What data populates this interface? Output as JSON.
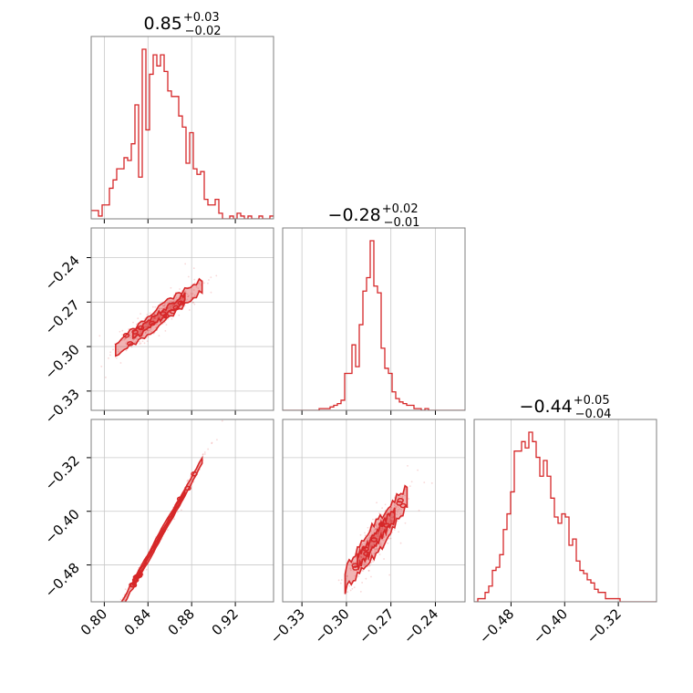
{
  "chart_data": {
    "type": "corner",
    "color": "#d62728",
    "params": [
      {
        "id": "p0",
        "median": 0.85,
        "title_main": "0.85",
        "title_sup": "+0.03",
        "title_sub": "−0.02",
        "range": [
          0.788,
          0.955
        ],
        "ticks": [
          0.8,
          0.84,
          0.88,
          0.92
        ],
        "tick_labels": [
          "0.80",
          "0.84",
          "0.88",
          "0.92"
        ]
      },
      {
        "id": "p1",
        "median": -0.28,
        "title_main": "−0.28",
        "title_sup": "+0.02",
        "title_sub": "−0.01",
        "range": [
          -0.343,
          -0.22
        ],
        "ticks": [
          -0.33,
          -0.3,
          -0.27,
          -0.24
        ],
        "tick_labels": [
          "−0.33",
          "−0.30",
          "−0.27",
          "−0.24"
        ]
      },
      {
        "id": "p2",
        "median": -0.44,
        "title_main": "−0.44",
        "title_sup": "+0.05",
        "title_sub": "−0.04",
        "range": [
          -0.535,
          -0.263
        ],
        "ticks": [
          -0.48,
          -0.4,
          -0.32
        ],
        "tick_labels": [
          "−0.48",
          "−0.40",
          "−0.32"
        ]
      }
    ],
    "histograms": {
      "p0": {
        "bin_start": 0.788,
        "bin_width": 0.00334,
        "counts": [
          3,
          3,
          1,
          5,
          5,
          11,
          14,
          18,
          18,
          22,
          21,
          27,
          41,
          15,
          61,
          32,
          52,
          59,
          55,
          59,
          53,
          46,
          44,
          44,
          37,
          33,
          20,
          31,
          18,
          16,
          17,
          7,
          5,
          5,
          7,
          2,
          0,
          0,
          1,
          0,
          2,
          1,
          0,
          1,
          0,
          0,
          1,
          0,
          0,
          1
        ]
      },
      "p1": {
        "bin_start": -0.343,
        "bin_width": 0.00246,
        "counts": [
          0,
          0,
          0,
          0,
          0,
          0,
          0,
          0,
          0,
          0,
          1,
          1,
          1,
          2,
          3,
          4,
          6,
          22,
          22,
          39,
          26,
          51,
          71,
          79,
          101,
          74,
          70,
          37,
          25,
          22,
          11,
          7,
          5,
          4,
          3,
          3,
          1,
          1,
          0,
          1,
          0,
          0,
          0,
          0,
          0,
          0,
          0,
          0,
          0,
          0
        ]
      },
      "p2": {
        "bin_start": -0.535,
        "bin_width": 0.00544,
        "counts": [
          0,
          1,
          1,
          3,
          5,
          10,
          11,
          15,
          23,
          28,
          35,
          48,
          48,
          51,
          49,
          54,
          51,
          46,
          40,
          45,
          40,
          33,
          27,
          25,
          28,
          27,
          18,
          20,
          13,
          10,
          9,
          7,
          6,
          4,
          3,
          3,
          1,
          1,
          1,
          1,
          0,
          0,
          0,
          0,
          0,
          0,
          0,
          0,
          0,
          0
        ]
      }
    },
    "pairs": [
      {
        "x": "p0",
        "y": "p1",
        "slope": 0.55,
        "x_sigma": 0.018,
        "spread": 0.004
      },
      {
        "x": "p0",
        "y": "p2",
        "slope": 2.9,
        "x_sigma": 0.018,
        "spread": 0.004
      },
      {
        "x": "p1",
        "y": "p2",
        "slope": 3.0,
        "x_sigma": 0.0095,
        "spread": 0.015
      }
    ],
    "grid": true
  }
}
